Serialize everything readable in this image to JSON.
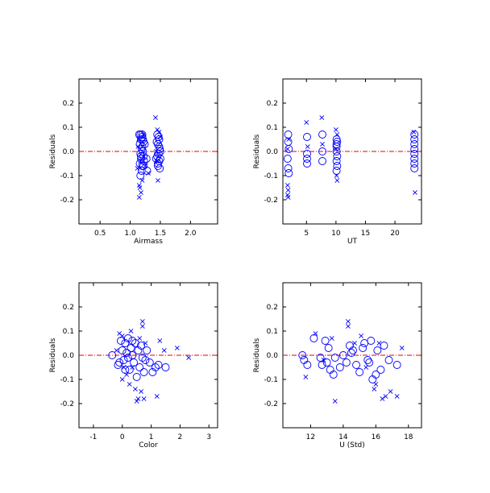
{
  "chart_data": [
    {
      "type": "scatter",
      "title": "",
      "xlabel": "Airmass",
      "ylabel": "Residuals",
      "xlim": [
        0.15,
        2.45
      ],
      "ylim": [
        -0.3,
        0.3
      ],
      "xticks": [
        0.5,
        1.0,
        1.5,
        2.0
      ],
      "xtick_labels": [
        "0.5",
        "1.0",
        "1.5",
        "2.0"
      ],
      "yticks": [
        -0.2,
        -0.1,
        0.0,
        0.1,
        0.2
      ],
      "ytick_labels": [
        "-0.2",
        "-0.1",
        "0.0",
        "0.1",
        "0.2"
      ],
      "reference_line": {
        "y": 0.0,
        "color": "#e60000",
        "style": "dash-dot"
      },
      "marker_color": "#0000ff",
      "series": [
        {
          "marker": "circle",
          "points": [
            [
              1.17,
              0.07
            ],
            [
              1.2,
              0.06
            ],
            [
              1.18,
              0.05
            ],
            [
              1.22,
              0.04
            ],
            [
              1.16,
              0.03
            ],
            [
              1.2,
              0.02
            ],
            [
              1.19,
              0.01
            ],
            [
              1.21,
              0.0
            ],
            [
              1.17,
              -0.01
            ],
            [
              1.22,
              -0.02
            ],
            [
              1.18,
              -0.03
            ],
            [
              1.16,
              -0.05
            ],
            [
              1.2,
              -0.06
            ],
            [
              1.23,
              -0.04
            ],
            [
              1.15,
              0.07
            ],
            [
              1.19,
              -0.08
            ],
            [
              1.17,
              -0.1
            ],
            [
              1.21,
              0.05
            ],
            [
              1.24,
              0.03
            ],
            [
              1.18,
              -0.02
            ],
            [
              1.2,
              0.07
            ],
            [
              1.22,
              -0.06
            ],
            [
              1.28,
              -0.08
            ],
            [
              1.27,
              -0.03
            ],
            [
              1.45,
              0.07
            ],
            [
              1.48,
              0.05
            ],
            [
              1.46,
              0.03
            ],
            [
              1.49,
              0.01
            ],
            [
              1.47,
              -0.01
            ],
            [
              1.45,
              -0.02
            ],
            [
              1.48,
              -0.04
            ],
            [
              1.46,
              -0.05
            ],
            [
              1.49,
              -0.07
            ],
            [
              1.44,
              0.04
            ],
            [
              1.47,
              0.06
            ],
            [
              1.5,
              0.0
            ],
            [
              1.43,
              -0.03
            ],
            [
              1.46,
              -0.06
            ],
            [
              1.48,
              0.02
            ],
            [
              1.5,
              -0.03
            ]
          ]
        },
        {
          "marker": "x",
          "points": [
            [
              1.14,
              0.05
            ],
            [
              1.16,
              -0.15
            ],
            [
              1.15,
              -0.19
            ],
            [
              1.18,
              -0.17
            ],
            [
              1.13,
              0.02
            ],
            [
              1.15,
              -0.14
            ],
            [
              1.2,
              -0.12
            ],
            [
              1.25,
              -0.06
            ],
            [
              1.22,
              0.07
            ],
            [
              1.17,
              -0.04
            ],
            [
              1.42,
              0.14
            ],
            [
              1.45,
              0.09
            ],
            [
              1.48,
              0.08
            ],
            [
              1.46,
              -0.12
            ],
            [
              1.44,
              -0.04
            ],
            [
              1.5,
              0.06
            ],
            [
              1.43,
              0.0
            ],
            [
              1.47,
              -0.02
            ],
            [
              1.3,
              -0.09
            ],
            [
              1.12,
              -0.07
            ]
          ]
        }
      ]
    },
    {
      "type": "scatter",
      "title": "",
      "xlabel": "UT",
      "ylabel": "Residuals",
      "xlim": [
        1,
        24.5
      ],
      "ylim": [
        -0.3,
        0.3
      ],
      "xticks": [
        5,
        10,
        15,
        20
      ],
      "xtick_labels": [
        "5",
        "10",
        "15",
        "20"
      ],
      "yticks": [
        -0.2,
        -0.1,
        0.0,
        0.1,
        0.2
      ],
      "ytick_labels": [
        "-0.2",
        "-0.1",
        "0.0",
        "0.1",
        "0.2"
      ],
      "reference_line": {
        "y": 0.0,
        "color": "#e60000",
        "style": "dash-dot"
      },
      "marker_color": "#0000ff",
      "series": [
        {
          "marker": "circle",
          "points": [
            [
              1.9,
              0.07
            ],
            [
              1.9,
              0.04
            ],
            [
              2.0,
              0.01
            ],
            [
              1.8,
              -0.03
            ],
            [
              1.9,
              -0.07
            ],
            [
              2.0,
              -0.09
            ],
            [
              5.1,
              0.06
            ],
            [
              5.1,
              -0.01
            ],
            [
              5.1,
              -0.03
            ],
            [
              5.1,
              -0.05
            ],
            [
              7.7,
              0.07
            ],
            [
              7.7,
              0.0
            ],
            [
              7.7,
              -0.04
            ],
            [
              10.1,
              0.05
            ],
            [
              10.1,
              0.03
            ],
            [
              10.1,
              0.02
            ],
            [
              10.1,
              0.0
            ],
            [
              10.2,
              -0.02
            ],
            [
              10.1,
              -0.04
            ],
            [
              10.2,
              -0.06
            ],
            [
              10.1,
              -0.08
            ],
            [
              10.2,
              0.04
            ],
            [
              23.3,
              0.07
            ],
            [
              23.3,
              0.05
            ],
            [
              23.3,
              0.03
            ],
            [
              23.3,
              0.01
            ],
            [
              23.3,
              -0.01
            ],
            [
              23.3,
              -0.03
            ],
            [
              23.3,
              -0.05
            ],
            [
              23.3,
              -0.07
            ]
          ]
        },
        {
          "marker": "x",
          "points": [
            [
              1.8,
              -0.14
            ],
            [
              1.9,
              -0.16
            ],
            [
              1.8,
              -0.18
            ],
            [
              1.9,
              -0.19
            ],
            [
              2.0,
              0.05
            ],
            [
              1.8,
              0.01
            ],
            [
              5.0,
              0.12
            ],
            [
              5.2,
              0.02
            ],
            [
              7.6,
              0.14
            ],
            [
              7.7,
              0.03
            ],
            [
              10.0,
              0.09
            ],
            [
              10.2,
              0.07
            ],
            [
              10.1,
              -0.1
            ],
            [
              10.2,
              -0.12
            ],
            [
              10.0,
              0.01
            ],
            [
              23.4,
              -0.17
            ],
            [
              23.2,
              0.08
            ]
          ]
        }
      ]
    },
    {
      "type": "scatter",
      "title": "",
      "xlabel": "Color",
      "ylabel": "Residuals",
      "xlim": [
        -1.5,
        3.3
      ],
      "ylim": [
        -0.3,
        0.3
      ],
      "xticks": [
        -1,
        0,
        1,
        2,
        3
      ],
      "xtick_labels": [
        "-1",
        "0",
        "1",
        "2",
        "3"
      ],
      "yticks": [
        -0.2,
        -0.1,
        0.0,
        0.1,
        0.2
      ],
      "ytick_labels": [
        "-0.2",
        "-0.1",
        "0.0",
        "0.1",
        "0.2"
      ],
      "reference_line": {
        "y": 0.0,
        "color": "#e60000",
        "style": "dash-dot"
      },
      "marker_color": "#0000ff",
      "series": [
        {
          "marker": "circle",
          "points": [
            [
              -0.35,
              0.0
            ],
            [
              -0.15,
              -0.04
            ],
            [
              -0.05,
              0.06
            ],
            [
              0.0,
              0.02
            ],
            [
              0.05,
              -0.02
            ],
            [
              0.1,
              0.05
            ],
            [
              0.15,
              0.01
            ],
            [
              0.2,
              0.07
            ],
            [
              0.25,
              -0.06
            ],
            [
              0.3,
              0.03
            ],
            [
              0.35,
              0.0
            ],
            [
              0.4,
              -0.03
            ],
            [
              0.45,
              0.05
            ],
            [
              0.5,
              -0.09
            ],
            [
              0.55,
              0.02
            ],
            [
              0.6,
              -0.05
            ],
            [
              0.65,
              0.04
            ],
            [
              0.7,
              -0.01
            ],
            [
              0.75,
              -0.07
            ],
            [
              0.85,
              0.02
            ],
            [
              0.95,
              -0.03
            ],
            [
              1.05,
              -0.07
            ],
            [
              1.15,
              -0.05
            ],
            [
              1.25,
              -0.04
            ],
            [
              1.5,
              -0.05
            ],
            [
              0.8,
              -0.02
            ],
            [
              0.2,
              -0.01
            ],
            [
              0.1,
              -0.06
            ],
            [
              0.35,
              0.06
            ],
            [
              -0.1,
              -0.03
            ]
          ]
        },
        {
          "marker": "x",
          "points": [
            [
              -0.2,
              0.02
            ],
            [
              -0.1,
              0.09
            ],
            [
              0.0,
              0.08
            ],
            [
              0.05,
              -0.05
            ],
            [
              0.15,
              -0.08
            ],
            [
              0.25,
              -0.12
            ],
            [
              0.35,
              -0.05
            ],
            [
              0.45,
              -0.14
            ],
            [
              0.5,
              -0.19
            ],
            [
              0.55,
              -0.18
            ],
            [
              0.6,
              0.07
            ],
            [
              0.65,
              -0.15
            ],
            [
              0.7,
              0.14
            ],
            [
              0.7,
              0.12
            ],
            [
              0.75,
              -0.18
            ],
            [
              0.8,
              0.05
            ],
            [
              1.2,
              -0.17
            ],
            [
              1.3,
              0.06
            ],
            [
              1.45,
              0.02
            ],
            [
              1.9,
              0.03
            ],
            [
              2.3,
              -0.01
            ],
            [
              0.3,
              0.1
            ],
            [
              0.0,
              -0.1
            ]
          ]
        }
      ]
    },
    {
      "type": "scatter",
      "title": "",
      "xlabel": "U (Std)",
      "ylabel": "Residuals",
      "xlim": [
        10.3,
        18.8
      ],
      "ylim": [
        -0.3,
        0.3
      ],
      "xticks": [
        12,
        14,
        16,
        18
      ],
      "xtick_labels": [
        "12",
        "14",
        "16",
        "18"
      ],
      "yticks": [
        -0.2,
        -0.1,
        0.0,
        0.1,
        0.2
      ],
      "ytick_labels": [
        "-0.2",
        "-0.1",
        "0.0",
        "0.1",
        "0.2"
      ],
      "reference_line": {
        "y": 0.0,
        "color": "#e60000",
        "style": "dash-dot"
      },
      "marker_color": "#0000ff",
      "series": [
        {
          "marker": "circle",
          "points": [
            [
              11.5,
              0.0
            ],
            [
              11.6,
              -0.02
            ],
            [
              11.8,
              -0.04
            ],
            [
              12.2,
              0.07
            ],
            [
              12.6,
              -0.01
            ],
            [
              12.7,
              -0.04
            ],
            [
              12.9,
              0.06
            ],
            [
              13.0,
              -0.03
            ],
            [
              13.1,
              0.03
            ],
            [
              13.2,
              -0.06
            ],
            [
              13.4,
              -0.08
            ],
            [
              13.5,
              -0.01
            ],
            [
              13.8,
              -0.05
            ],
            [
              14.0,
              0.0
            ],
            [
              14.2,
              -0.03
            ],
            [
              14.4,
              0.04
            ],
            [
              14.6,
              0.02
            ],
            [
              14.8,
              -0.04
            ],
            [
              15.0,
              -0.07
            ],
            [
              15.2,
              0.03
            ],
            [
              15.3,
              0.05
            ],
            [
              15.5,
              -0.02
            ],
            [
              15.7,
              0.06
            ],
            [
              15.8,
              -0.1
            ],
            [
              16.0,
              -0.08
            ],
            [
              16.1,
              0.02
            ],
            [
              16.3,
              -0.06
            ],
            [
              16.5,
              0.04
            ],
            [
              16.8,
              -0.02
            ],
            [
              17.3,
              -0.04
            ],
            [
              14.5,
              0.01
            ],
            [
              15.6,
              -0.03
            ]
          ]
        },
        {
          "marker": "x",
          "points": [
            [
              11.7,
              -0.09
            ],
            [
              12.3,
              0.09
            ],
            [
              12.8,
              -0.02
            ],
            [
              13.3,
              0.07
            ],
            [
              13.5,
              -0.19
            ],
            [
              14.3,
              0.14
            ],
            [
              14.3,
              0.12
            ],
            [
              14.7,
              0.05
            ],
            [
              15.1,
              0.08
            ],
            [
              15.4,
              -0.05
            ],
            [
              15.9,
              -0.14
            ],
            [
              16.2,
              0.05
            ],
            [
              16.4,
              -0.18
            ],
            [
              16.6,
              -0.17
            ],
            [
              16.9,
              -0.15
            ],
            [
              17.3,
              -0.17
            ],
            [
              17.6,
              0.03
            ],
            [
              16.0,
              -0.12
            ]
          ]
        }
      ]
    }
  ]
}
